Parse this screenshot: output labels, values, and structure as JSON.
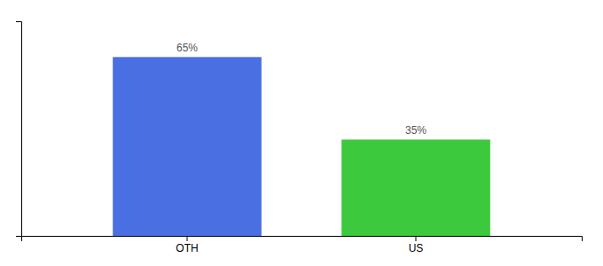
{
  "chart_data": {
    "type": "bar",
    "categories": [
      "OTH",
      "US"
    ],
    "values": [
      65,
      35
    ],
    "value_labels": [
      "65%",
      "35%"
    ],
    "data_labels": true,
    "colors": [
      "#4A6FE3",
      "#3DC93D"
    ],
    "ylim": [
      0,
      78
    ],
    "tick_labels": "x",
    "grid": false
  }
}
